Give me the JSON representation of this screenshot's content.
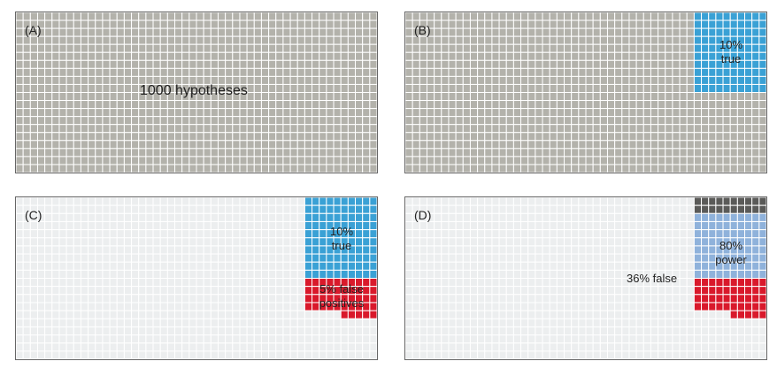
{
  "colors": {
    "gray": "#b3b2ab",
    "light": "#eceeef",
    "blue": "#3aa1d5",
    "red": "#d9192b",
    "lightblue": "#8fb2db",
    "dark": "#5a5a58"
  },
  "panels": {
    "a": {
      "label": "(A)",
      "text": "1000 hypotheses"
    },
    "b": {
      "label": "(B)",
      "true_line1": "10%",
      "true_line2": "true"
    },
    "c": {
      "label": "(C)",
      "true_line1": "10%",
      "true_line2": "true",
      "fp_line1": "5% false",
      "fp_line2": "positives"
    },
    "d": {
      "label": "(D)",
      "power_line1": "80%",
      "power_line2": "power",
      "false_text": "36% false"
    }
  },
  "grid": {
    "columns": 50,
    "rows": 20,
    "total": 1000,
    "true": 100,
    "false_positives": 45,
    "true_positives": 80,
    "missed": 20
  }
}
